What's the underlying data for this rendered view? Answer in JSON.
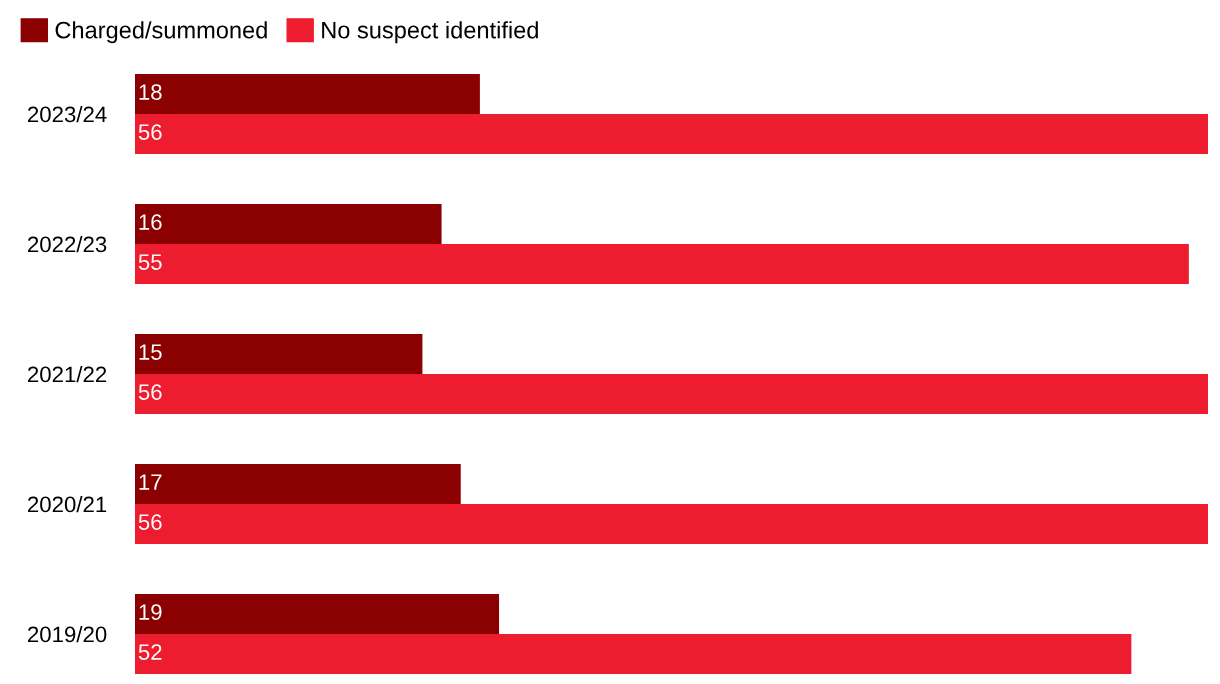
{
  "chart_data": {
    "type": "bar",
    "orientation": "horizontal",
    "categories": [
      "2023/24",
      "2022/23",
      "2021/22",
      "2020/21",
      "2019/20"
    ],
    "series": [
      {
        "name": "Charged/summoned",
        "color": "#8b0000",
        "values": [
          18,
          16,
          15,
          17,
          19
        ]
      },
      {
        "name": "No suspect identified",
        "color": "#ed1c2e",
        "values": [
          56,
          55,
          56,
          56,
          52
        ]
      }
    ],
    "data_labels": true,
    "legend": "top left",
    "grid": false,
    "tick_labels": "y"
  }
}
